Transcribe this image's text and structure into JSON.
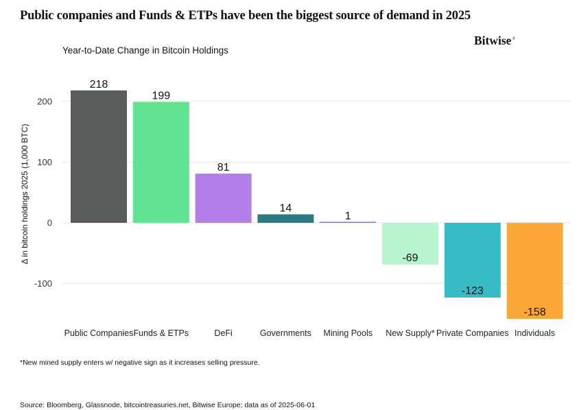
{
  "header": {
    "title": "Public companies and Funds & ETPs have been the biggest source of demand in 2025",
    "brand": "Bitwise",
    "brand_mark": "®"
  },
  "chart_data": {
    "type": "bar",
    "title": "Year-to-Date Change in Bitcoin Holdings",
    "ylabel": "Δ in bitcoin holdings 2025 (1,000 BTC)",
    "xlabel": "",
    "ylim": [
      -158,
      220
    ],
    "yticks": [
      200,
      100,
      0,
      -100
    ],
    "ytick_labels": [
      "200",
      "100",
      "0",
      "-100"
    ],
    "grid": true,
    "categories": [
      "Public Companies",
      "Funds & ETPs",
      "DeFi",
      "Governments",
      "Mining Pools",
      "New Supply*",
      "Private Companies",
      "Individuals"
    ],
    "values": [
      218,
      199,
      81,
      14,
      1,
      -69,
      -123,
      -158
    ],
    "value_labels": [
      "218",
      "199",
      "81",
      "14",
      "1",
      "-69",
      "-123",
      "-158"
    ],
    "colors": [
      "#5a5d5e",
      "#62e391",
      "#b27fe8",
      "#2e7a80",
      "#8b79c9",
      "#b9f4d0",
      "#37bcc8",
      "#fca838"
    ]
  },
  "footer": {
    "footnote": "*New mined supply enters w/ negative sign as it increases selling pressure.",
    "source": "Source: Bloomberg, Glassnode, bitcointreasuries.net, Bitwise Europe; data as of 2025-06-01"
  }
}
